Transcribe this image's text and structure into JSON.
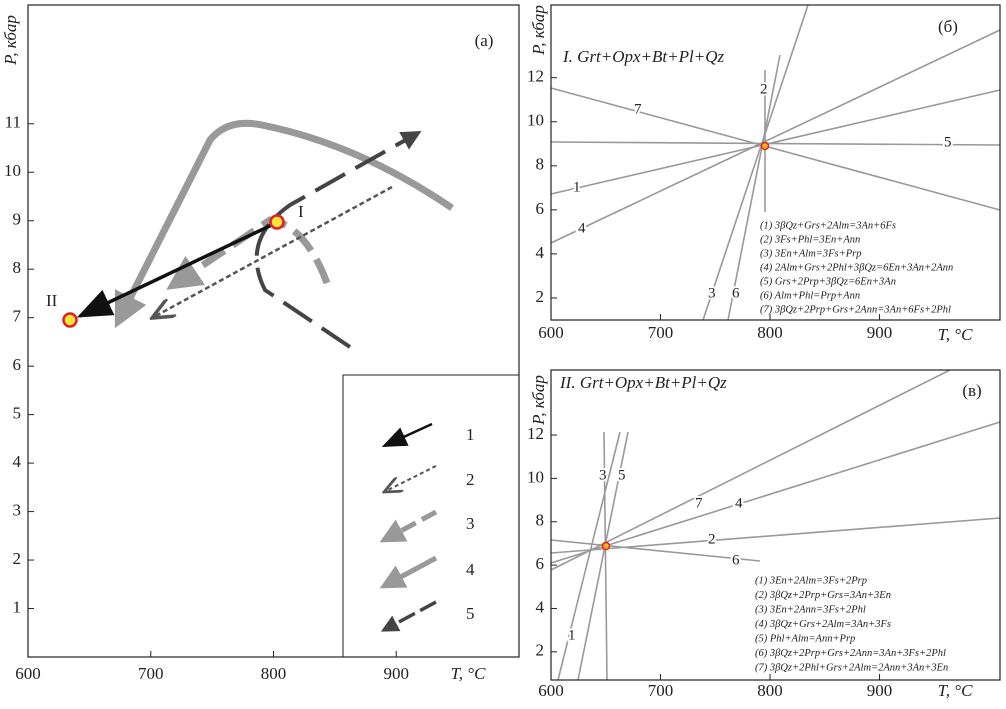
{
  "panels": [
    {
      "letter": "(а)",
      "y_label": "P, кбар",
      "x_label": "T, °C",
      "xlim": [
        600,
        1000
      ],
      "ylim": [
        0,
        13.45
      ],
      "xticks": [
        600,
        700,
        800,
        900
      ],
      "yticks": [
        1,
        2,
        3,
        4,
        5,
        6,
        7,
        8,
        9,
        10,
        11
      ],
      "points": [
        "I",
        "II"
      ]
    },
    {
      "letter": "(б)",
      "title": "I. Grt+Opx+Bt+Pl+Qz",
      "y_label": "P, кбар",
      "x_label": "T, °C",
      "xlim": [
        600,
        1010
      ],
      "ylim": [
        1,
        15.3
      ],
      "xticks": [
        600,
        700,
        800,
        900
      ],
      "yticks": [
        2,
        4,
        6,
        8,
        10,
        12
      ],
      "line_labels": [
        "7",
        "2",
        "5",
        "1",
        "4",
        "3",
        "6"
      ],
      "reactions": [
        "(1) 3βQz+Grs+2Alm=3An+6Fs",
        "(2) 3Fs+Phl=3En+Ann",
        "(3) 3En+Alm=3Fs+Prp",
        "(4) 2Alm+Grs+2Phl+3βQz=6En+3An+2Ann",
        "(5) Grs+2Prp+3βQz=6En+3An",
        "(6) Alm+Phl=Prp+Ann",
        "(7) 3βQz+2Prp+Grs+2Ann=3An+6Fs+2Phl"
      ]
    },
    {
      "letter": "(в)",
      "title": "II. Grt+Opx+Bt+Pl+Qz",
      "y_label": "P, кбар",
      "x_label": "T, °C",
      "xlim": [
        600,
        1010
      ],
      "ylim": [
        0.7,
        15
      ],
      "xticks": [
        600,
        700,
        800,
        900
      ],
      "yticks": [
        2,
        4,
        6,
        8,
        10,
        12
      ],
      "line_labels": [
        "3",
        "5",
        "7",
        "4",
        "2",
        "6",
        "1"
      ],
      "reactions": [
        "(1) 3En+2Alm=3Fs+2Prp",
        "(2) 3βQz+2Prp+Grs=3An+3En",
        "(3) 3En+2Ann=3Fs+2Phl",
        "(4) 3βQz+Grs+2Alm=3An+3Fs",
        "(5) Phl+Alm=Ann+Prp",
        "(6) 3βQz+2Prp+Grs+2Ann=3An+3Fs+2Phl",
        "(7) 3βQz+2Phl+Grs+2Alm=2Ann+3An+3En"
      ]
    }
  ],
  "legend": {
    "items": [
      "1",
      "2",
      "3",
      "4",
      "5"
    ]
  }
}
